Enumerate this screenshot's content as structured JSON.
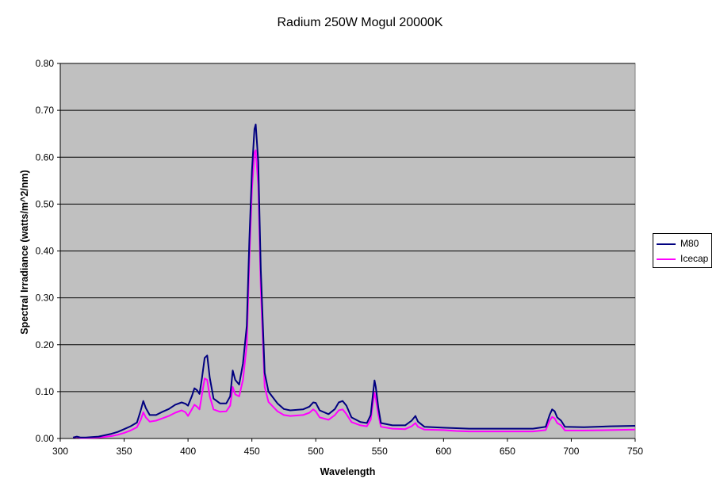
{
  "chart_data": {
    "type": "line",
    "title": "Radium 250W Mogul 20000K",
    "xlabel": "Wavelength",
    "ylabel": "Spectral Irradiance (watts/m^2/nm)",
    "xlim": [
      300,
      750
    ],
    "ylim": [
      0,
      0.8
    ],
    "x_ticks": [
      "300",
      "350",
      "400",
      "450",
      "500",
      "550",
      "600",
      "650",
      "700",
      "750"
    ],
    "y_ticks": [
      "0.00",
      "0.10",
      "0.20",
      "0.30",
      "0.40",
      "0.50",
      "0.60",
      "0.70",
      "0.80"
    ],
    "grid": "horizontal",
    "plot_background": "#c0c0c0",
    "legend_position": "right",
    "series": [
      {
        "name": "M80",
        "color": "#000080",
        "points": [
          [
            310,
            0.002
          ],
          [
            313,
            0.004
          ],
          [
            316,
            0.002
          ],
          [
            320,
            0.002
          ],
          [
            330,
            0.004
          ],
          [
            340,
            0.01
          ],
          [
            345,
            0.014
          ],
          [
            350,
            0.02
          ],
          [
            355,
            0.026
          ],
          [
            360,
            0.034
          ],
          [
            363,
            0.06
          ],
          [
            365,
            0.08
          ],
          [
            367,
            0.065
          ],
          [
            370,
            0.05
          ],
          [
            375,
            0.05
          ],
          [
            380,
            0.057
          ],
          [
            385,
            0.063
          ],
          [
            390,
            0.072
          ],
          [
            395,
            0.077
          ],
          [
            398,
            0.074
          ],
          [
            400,
            0.07
          ],
          [
            403,
            0.09
          ],
          [
            405,
            0.107
          ],
          [
            407,
            0.103
          ],
          [
            409,
            0.095
          ],
          [
            411,
            0.13
          ],
          [
            413,
            0.172
          ],
          [
            415,
            0.177
          ],
          [
            417,
            0.13
          ],
          [
            420,
            0.085
          ],
          [
            425,
            0.075
          ],
          [
            430,
            0.075
          ],
          [
            433,
            0.09
          ],
          [
            435,
            0.145
          ],
          [
            437,
            0.125
          ],
          [
            440,
            0.115
          ],
          [
            443,
            0.16
          ],
          [
            446,
            0.24
          ],
          [
            448,
            0.42
          ],
          [
            450,
            0.57
          ],
          [
            452,
            0.66
          ],
          [
            453,
            0.67
          ],
          [
            455,
            0.59
          ],
          [
            457,
            0.36
          ],
          [
            460,
            0.14
          ],
          [
            463,
            0.1
          ],
          [
            470,
            0.075
          ],
          [
            475,
            0.063
          ],
          [
            480,
            0.06
          ],
          [
            490,
            0.062
          ],
          [
            495,
            0.068
          ],
          [
            498,
            0.077
          ],
          [
            500,
            0.076
          ],
          [
            503,
            0.06
          ],
          [
            510,
            0.052
          ],
          [
            515,
            0.063
          ],
          [
            518,
            0.077
          ],
          [
            521,
            0.08
          ],
          [
            524,
            0.07
          ],
          [
            528,
            0.045
          ],
          [
            535,
            0.035
          ],
          [
            540,
            0.033
          ],
          [
            543,
            0.05
          ],
          [
            545,
            0.1
          ],
          [
            546,
            0.124
          ],
          [
            547,
            0.11
          ],
          [
            549,
            0.065
          ],
          [
            551,
            0.033
          ],
          [
            560,
            0.028
          ],
          [
            570,
            0.028
          ],
          [
            575,
            0.038
          ],
          [
            578,
            0.048
          ],
          [
            580,
            0.036
          ],
          [
            585,
            0.025
          ],
          [
            600,
            0.023
          ],
          [
            610,
            0.022
          ],
          [
            620,
            0.021
          ],
          [
            650,
            0.021
          ],
          [
            670,
            0.021
          ],
          [
            680,
            0.025
          ],
          [
            683,
            0.05
          ],
          [
            685,
            0.062
          ],
          [
            687,
            0.058
          ],
          [
            689,
            0.045
          ],
          [
            692,
            0.038
          ],
          [
            695,
            0.025
          ],
          [
            710,
            0.024
          ],
          [
            730,
            0.026
          ],
          [
            750,
            0.027
          ]
        ]
      },
      {
        "name": "Icecap",
        "color": "#ff00ff",
        "points": [
          [
            310,
            0.002
          ],
          [
            313,
            0.003
          ],
          [
            316,
            0.001
          ],
          [
            320,
            0.001
          ],
          [
            330,
            0.002
          ],
          [
            340,
            0.005
          ],
          [
            345,
            0.008
          ],
          [
            350,
            0.012
          ],
          [
            355,
            0.017
          ],
          [
            360,
            0.024
          ],
          [
            363,
            0.04
          ],
          [
            365,
            0.056
          ],
          [
            367,
            0.045
          ],
          [
            370,
            0.036
          ],
          [
            375,
            0.038
          ],
          [
            380,
            0.043
          ],
          [
            385,
            0.048
          ],
          [
            390,
            0.055
          ],
          [
            395,
            0.06
          ],
          [
            398,
            0.056
          ],
          [
            400,
            0.048
          ],
          [
            403,
            0.062
          ],
          [
            405,
            0.072
          ],
          [
            407,
            0.068
          ],
          [
            409,
            0.062
          ],
          [
            411,
            0.095
          ],
          [
            413,
            0.128
          ],
          [
            415,
            0.125
          ],
          [
            417,
            0.09
          ],
          [
            420,
            0.062
          ],
          [
            425,
            0.057
          ],
          [
            430,
            0.058
          ],
          [
            433,
            0.07
          ],
          [
            435,
            0.11
          ],
          [
            437,
            0.094
          ],
          [
            440,
            0.09
          ],
          [
            443,
            0.125
          ],
          [
            446,
            0.2
          ],
          [
            448,
            0.38
          ],
          [
            450,
            0.53
          ],
          [
            452,
            0.61
          ],
          [
            453,
            0.615
          ],
          [
            455,
            0.54
          ],
          [
            457,
            0.32
          ],
          [
            460,
            0.11
          ],
          [
            463,
            0.078
          ],
          [
            470,
            0.058
          ],
          [
            475,
            0.05
          ],
          [
            480,
            0.048
          ],
          [
            490,
            0.05
          ],
          [
            495,
            0.055
          ],
          [
            498,
            0.062
          ],
          [
            500,
            0.058
          ],
          [
            503,
            0.045
          ],
          [
            510,
            0.04
          ],
          [
            515,
            0.05
          ],
          [
            518,
            0.06
          ],
          [
            521,
            0.062
          ],
          [
            524,
            0.052
          ],
          [
            528,
            0.035
          ],
          [
            535,
            0.028
          ],
          [
            540,
            0.026
          ],
          [
            543,
            0.04
          ],
          [
            545,
            0.08
          ],
          [
            546,
            0.098
          ],
          [
            547,
            0.085
          ],
          [
            549,
            0.05
          ],
          [
            551,
            0.025
          ],
          [
            560,
            0.021
          ],
          [
            570,
            0.02
          ],
          [
            575,
            0.026
          ],
          [
            578,
            0.033
          ],
          [
            580,
            0.025
          ],
          [
            585,
            0.019
          ],
          [
            600,
            0.018
          ],
          [
            610,
            0.016
          ],
          [
            620,
            0.015
          ],
          [
            650,
            0.015
          ],
          [
            670,
            0.015
          ],
          [
            680,
            0.018
          ],
          [
            683,
            0.038
          ],
          [
            685,
            0.046
          ],
          [
            687,
            0.043
          ],
          [
            689,
            0.033
          ],
          [
            692,
            0.028
          ],
          [
            695,
            0.017
          ],
          [
            710,
            0.017
          ],
          [
            730,
            0.018
          ],
          [
            750,
            0.019
          ]
        ]
      }
    ]
  }
}
